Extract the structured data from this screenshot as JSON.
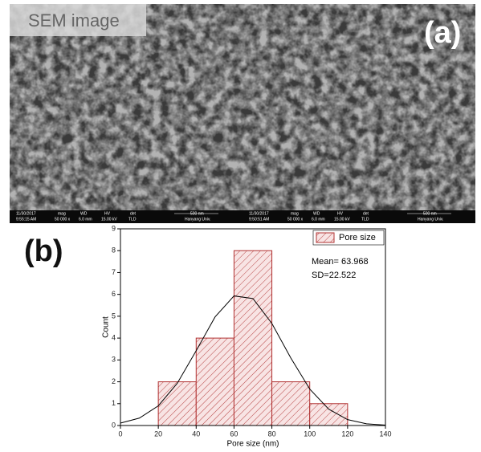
{
  "panel_a": {
    "caption": "SEM image",
    "label": "(a)",
    "images": [
      {
        "info": [
          "11/30/2017",
          "9:55:15 AM",
          "mag",
          "50 000 x",
          "WD",
          "6.0 mm",
          "HV",
          "15.00 kV",
          "det",
          "TLD",
          "500 nm",
          "Hanyang Univ."
        ]
      },
      {
        "info": [
          "11/30/2017",
          "9:50:51 AM",
          "mag",
          "50 000 x",
          "WD",
          "6.0 mm",
          "HV",
          "15.00 kV",
          "det",
          "TLD",
          "500 nm",
          "Hanyang Univ."
        ]
      }
    ]
  },
  "panel_b": {
    "label": "(b)"
  },
  "chart_data": {
    "type": "histogram",
    "xlabel": "Pore size (nm)",
    "ylabel": "Count",
    "bins": [
      20,
      40,
      60,
      80,
      100,
      120
    ],
    "series": [
      {
        "name": "Pore size",
        "color": "#b03030",
        "fill": "#f8e4e4",
        "values": [
          2,
          4,
          8,
          2,
          1
        ]
      }
    ],
    "curve": {
      "color": "#000000",
      "x": [
        0,
        10,
        20,
        30,
        40,
        50,
        60,
        70,
        80,
        90,
        100,
        110,
        120,
        130,
        140
      ],
      "y": [
        0.11,
        0.34,
        0.9,
        1.93,
        3.42,
        4.97,
        5.93,
        5.81,
        4.67,
        3.09,
        1.67,
        0.75,
        0.27,
        0.08,
        0.02
      ]
    },
    "annotations": [
      "Mean= 63.968",
      "SD=22.522"
    ],
    "xlim": [
      0,
      140
    ],
    "xticks": [
      0,
      20,
      40,
      60,
      80,
      100,
      120,
      140
    ],
    "ylim": [
      0,
      9
    ],
    "yticks": [
      0,
      1,
      2,
      3,
      4,
      5,
      6,
      7,
      8,
      9
    ],
    "legend": "upper right"
  }
}
